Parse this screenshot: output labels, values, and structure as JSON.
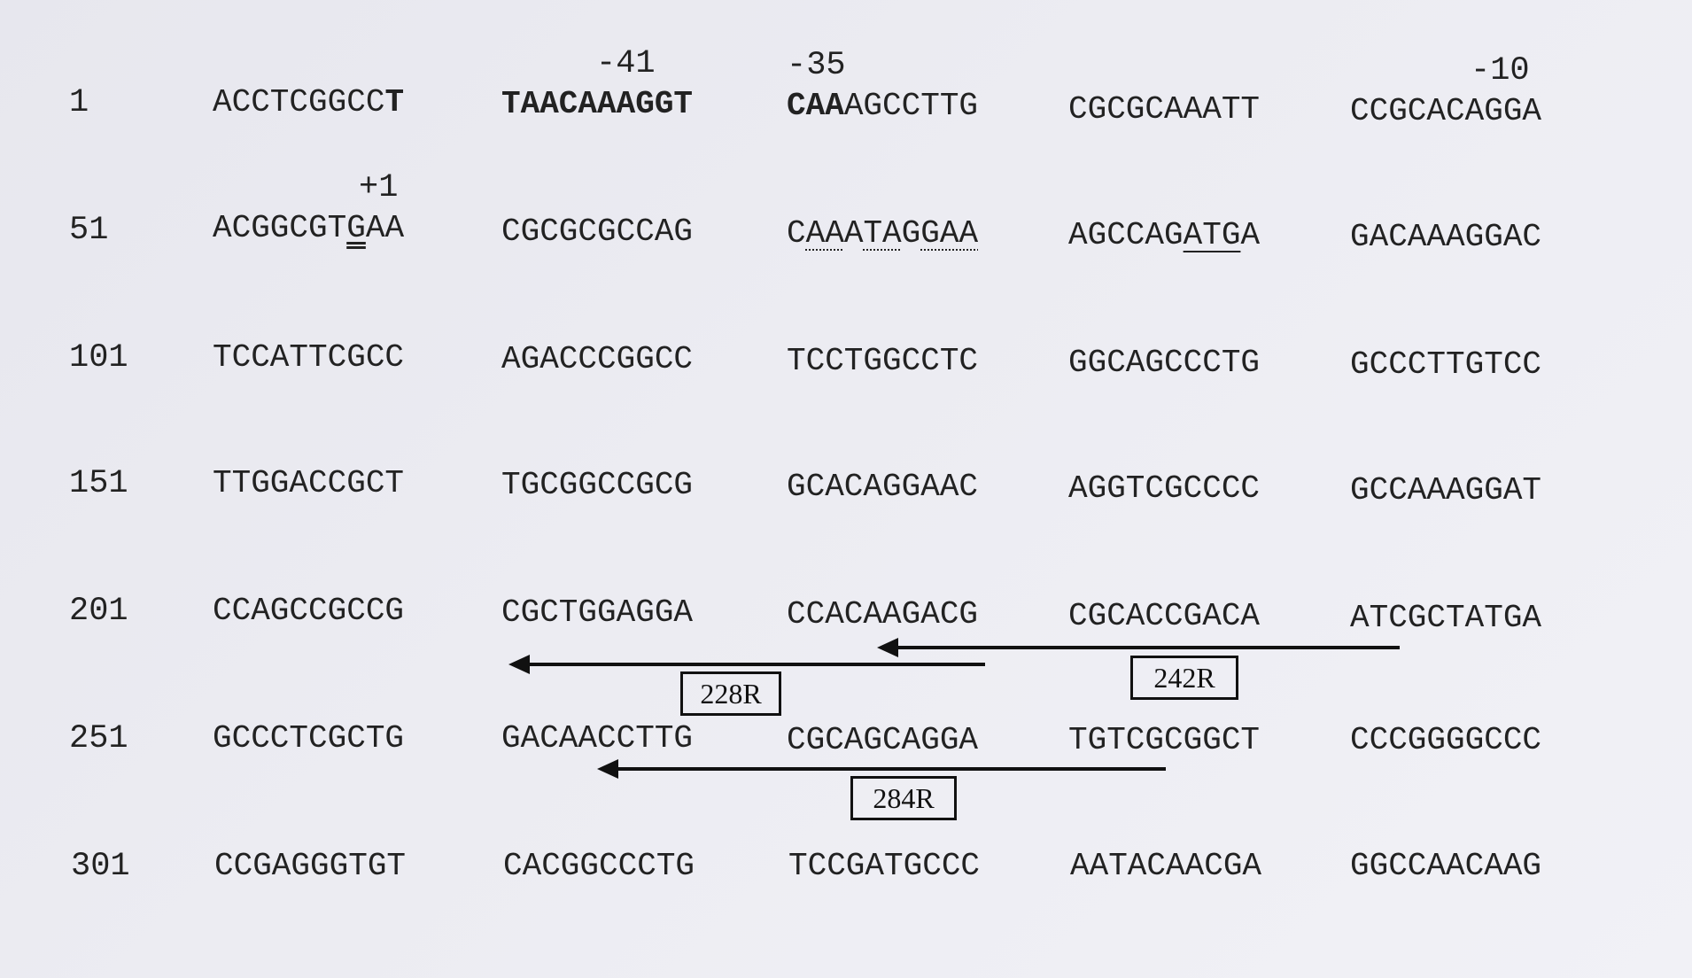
{
  "positions": {
    "m41": "-41",
    "m35": "-35",
    "m10": "-10",
    "p1": "+1"
  },
  "rows": [
    {
      "num": "1",
      "blocks": [
        "ACCTCGGCCT",
        "TAACAAAGGT",
        "CAAAGCCTTG",
        "CGCGCAAATT",
        "CCGCACAGGA"
      ]
    },
    {
      "num": "51",
      "blocks": [
        "ACGGCGTGAA",
        "CGCGCGCCAG",
        "CAAATAGGAA",
        "AGCCAGATGA",
        "GACAAAGGAC"
      ]
    },
    {
      "num": "101",
      "blocks": [
        "TCCATTCGCC",
        "AGACCCGGCC",
        "TCCTGGCCTC",
        "GGCAGCCCTG",
        "GCCCTTGTCC"
      ]
    },
    {
      "num": "151",
      "blocks": [
        "TTGGACCGCT",
        "TGCGGCCGCG",
        "GCACAGGAAC",
        "AGGTCGCCCC",
        "GCCAAAGGAT"
      ]
    },
    {
      "num": "201",
      "blocks": [
        "CCAGCCGCCG",
        "CGCTGGAGGA",
        "CCACAAGACG",
        "CGCACCGACA",
        "ATCGCTATGA"
      ]
    },
    {
      "num": "251",
      "blocks": [
        "GCCCTCGCTG",
        "GACAACCTTG",
        "CGCAGCAGGA",
        "TGTCGCGGCT",
        "CCCGGGGCCC"
      ]
    },
    {
      "num": "301",
      "blocks": [
        "CCGAGGGTGT",
        "CACGGCCCTG",
        "TCCGATGCCC",
        "AATACAACGA",
        "GGCCAACAAG"
      ]
    }
  ],
  "row1_parts": {
    "b1_plain": "ACCTCGGCC",
    "b1_bold": "T",
    "b3_bold": "CAA",
    "b3_plain": "AGCCTTG"
  },
  "row2_parts": {
    "b1_pre": "ACGGCGT",
    "b1_dbl": "G",
    "b1_post": "AA",
    "b3_c": "C",
    "b3_d1": "AA",
    "b3_a": "A",
    "b3_d2": "TA",
    "b3_g": "G",
    "b3_d3": "GAA",
    "b4_pre": "AGCCAG",
    "b4_und": "ATG",
    "b4_post": "A"
  },
  "primers": [
    {
      "name": "228R",
      "label": "228R"
    },
    {
      "name": "242R",
      "label": "242R"
    },
    {
      "name": "284R",
      "label": "284R"
    }
  ]
}
